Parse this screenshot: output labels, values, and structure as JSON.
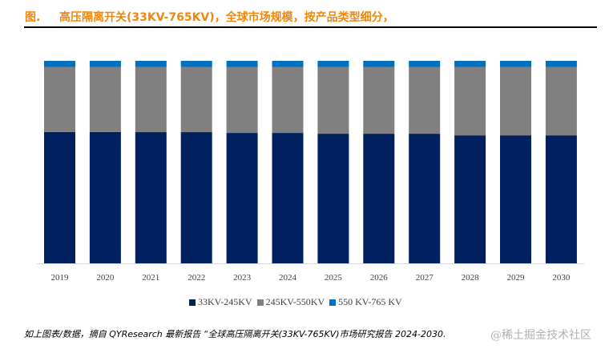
{
  "header": {
    "figure_label": "图.",
    "title": "高压隔离开关(33KV-765KV)，全球市场规模，按产品类型细分，"
  },
  "chart_data": {
    "type": "bar",
    "stacked": true,
    "normalized": true,
    "title": "高压隔离开关(33KV-765KV)，全球市场规模，按产品类型细分",
    "xlabel": "",
    "ylabel": "",
    "ylim": [
      0,
      100
    ],
    "grid": false,
    "legend_position": "bottom",
    "categories": [
      "2019",
      "2020",
      "2021",
      "2022",
      "2023",
      "2024",
      "2025",
      "2026",
      "2027",
      "2028",
      "2029",
      "2030"
    ],
    "series": [
      {
        "name": "33KV-245KV",
        "color": "#002060",
        "values": [
          64.9,
          64.9,
          64.8,
          64.8,
          64.4,
          64.4,
          64.0,
          64.0,
          64.0,
          63.2,
          63.2,
          63.2
        ]
      },
      {
        "name": "245KV-550KV",
        "color": "#808080",
        "values": [
          32.0,
          32.0,
          32.1,
          32.1,
          32.5,
          32.5,
          32.9,
          32.9,
          32.9,
          33.7,
          33.7,
          33.7
        ]
      },
      {
        "name": "550 KV-765 KV",
        "color": "#0070c0",
        "values": [
          3.1,
          3.1,
          3.1,
          3.1,
          3.1,
          3.1,
          3.1,
          3.1,
          3.1,
          3.1,
          3.1,
          3.1
        ]
      }
    ]
  },
  "legend": {
    "items": [
      "33KV-245KV",
      "245KV-550KV",
      "550 KV-765 KV"
    ]
  },
  "footer": {
    "source": "如上图表/数据，摘自 QYResearch 最新报告 “全球高压隔离开关(33KV-765KV)市场研究报告 2024-2030.",
    "watermark": "@稀土掘金技术社区"
  }
}
